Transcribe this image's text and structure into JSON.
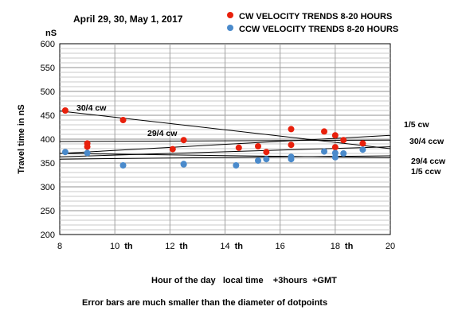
{
  "chart_data": {
    "type": "scatter",
    "title": "April 29, 30, May 1,  2017",
    "ylabel": "Travel time in nS",
    "yunit": "nS",
    "xlabel": "Hour of the day   local time    +3hours  +GMT",
    "note": "Error bars are much smaller than the diameter of  dotpoints",
    "xlim": [
      8,
      20
    ],
    "ylim": [
      200,
      600
    ],
    "yticks": [
      200,
      250,
      300,
      350,
      400,
      450,
      500,
      550,
      600
    ],
    "xticks": [
      {
        "value": 8,
        "label": "8"
      },
      {
        "value": 10,
        "label": "10"
      },
      {
        "value": 12,
        "label": "12"
      },
      {
        "value": 14,
        "label": "14"
      },
      {
        "value": 16,
        "label": "16"
      },
      {
        "value": 18,
        "label": "18"
      },
      {
        "value": 20,
        "label": "20"
      }
    ],
    "xtick_suffix_labels": [
      {
        "value": 10.5,
        "label": "th"
      },
      {
        "value": 12.5,
        "label": "th"
      },
      {
        "value": 14.5,
        "label": "th"
      },
      {
        "value": 18.5,
        "label": "th"
      }
    ],
    "grid": true,
    "legend_position": "top-right",
    "series": [
      {
        "name": "CW VELOCITY TRENDS 8-20 HOURS",
        "color": "#e8200c",
        "points": [
          [
            8.2,
            460
          ],
          [
            9.0,
            391
          ],
          [
            9.0,
            384
          ],
          [
            10.3,
            440
          ],
          [
            12.1,
            379
          ],
          [
            12.5,
            398
          ],
          [
            14.5,
            382
          ],
          [
            15.2,
            385
          ],
          [
            15.5,
            373
          ],
          [
            16.4,
            421
          ],
          [
            16.4,
            388
          ],
          [
            17.6,
            416
          ],
          [
            18.0,
            408
          ],
          [
            18.0,
            383
          ],
          [
            18.3,
            398
          ],
          [
            19.0,
            391
          ]
        ]
      },
      {
        "name": "CCW VELOCITY TRENDS 8-20 HOURS",
        "color": "#4a8acb",
        "points": [
          [
            8.2,
            373
          ],
          [
            9.0,
            371
          ],
          [
            10.3,
            345
          ],
          [
            12.5,
            348
          ],
          [
            12.5,
            347
          ],
          [
            14.4,
            345
          ],
          [
            15.2,
            355
          ],
          [
            15.5,
            358
          ],
          [
            16.4,
            363
          ],
          [
            16.4,
            358
          ],
          [
            17.6,
            374
          ],
          [
            18.0,
            371
          ],
          [
            18.0,
            362
          ],
          [
            18.3,
            370
          ],
          [
            19.0,
            378
          ]
        ]
      }
    ],
    "trendlines": [
      {
        "label": "30/4 cw",
        "x": [
          8,
          20
        ],
        "y": [
          459,
          380
        ]
      },
      {
        "label": "29/4 cw",
        "x": [
          8,
          20
        ],
        "y": [
          395,
          398
        ]
      },
      {
        "label": "1/5 cw",
        "x": [
          8,
          20
        ],
        "y": [
          370,
          408
        ]
      },
      {
        "label": "30/4 ccw",
        "x": [
          8,
          20
        ],
        "y": [
          363,
          384
        ]
      },
      {
        "label": "29/4 ccw",
        "x": [
          8,
          20
        ],
        "y": [
          370,
          361
        ]
      },
      {
        "label": "1/5 ccw",
        "x": [
          8,
          20
        ],
        "y": [
          358,
          365
        ]
      }
    ]
  }
}
